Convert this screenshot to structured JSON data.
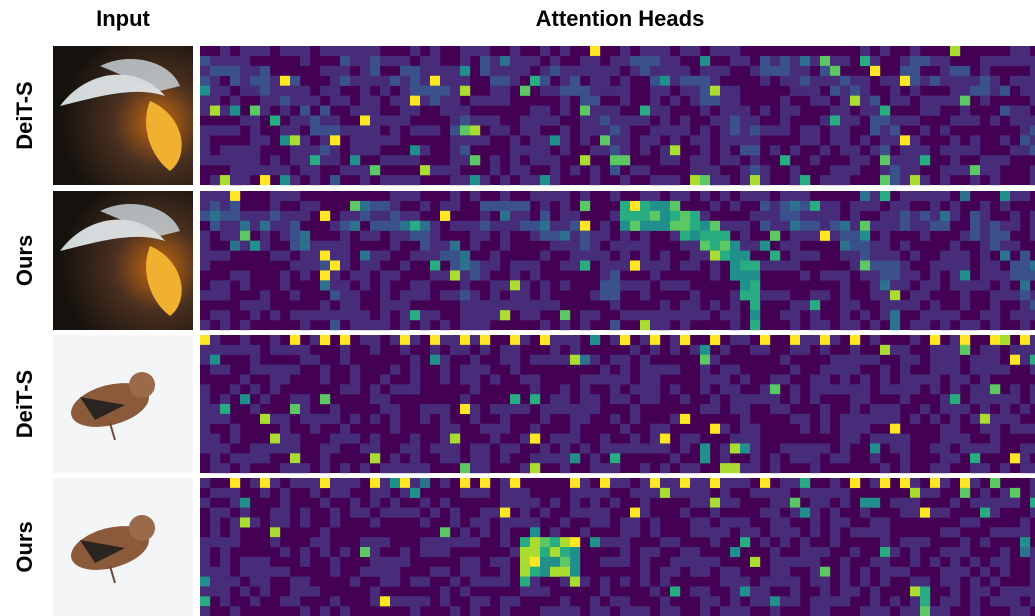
{
  "header": {
    "input": "Input",
    "heads": "Attention Heads"
  },
  "rows": [
    {
      "label": "DeiT-S"
    },
    {
      "label": "Ours"
    },
    {
      "label": "DeiT-S"
    },
    {
      "label": "Ours"
    }
  ]
}
